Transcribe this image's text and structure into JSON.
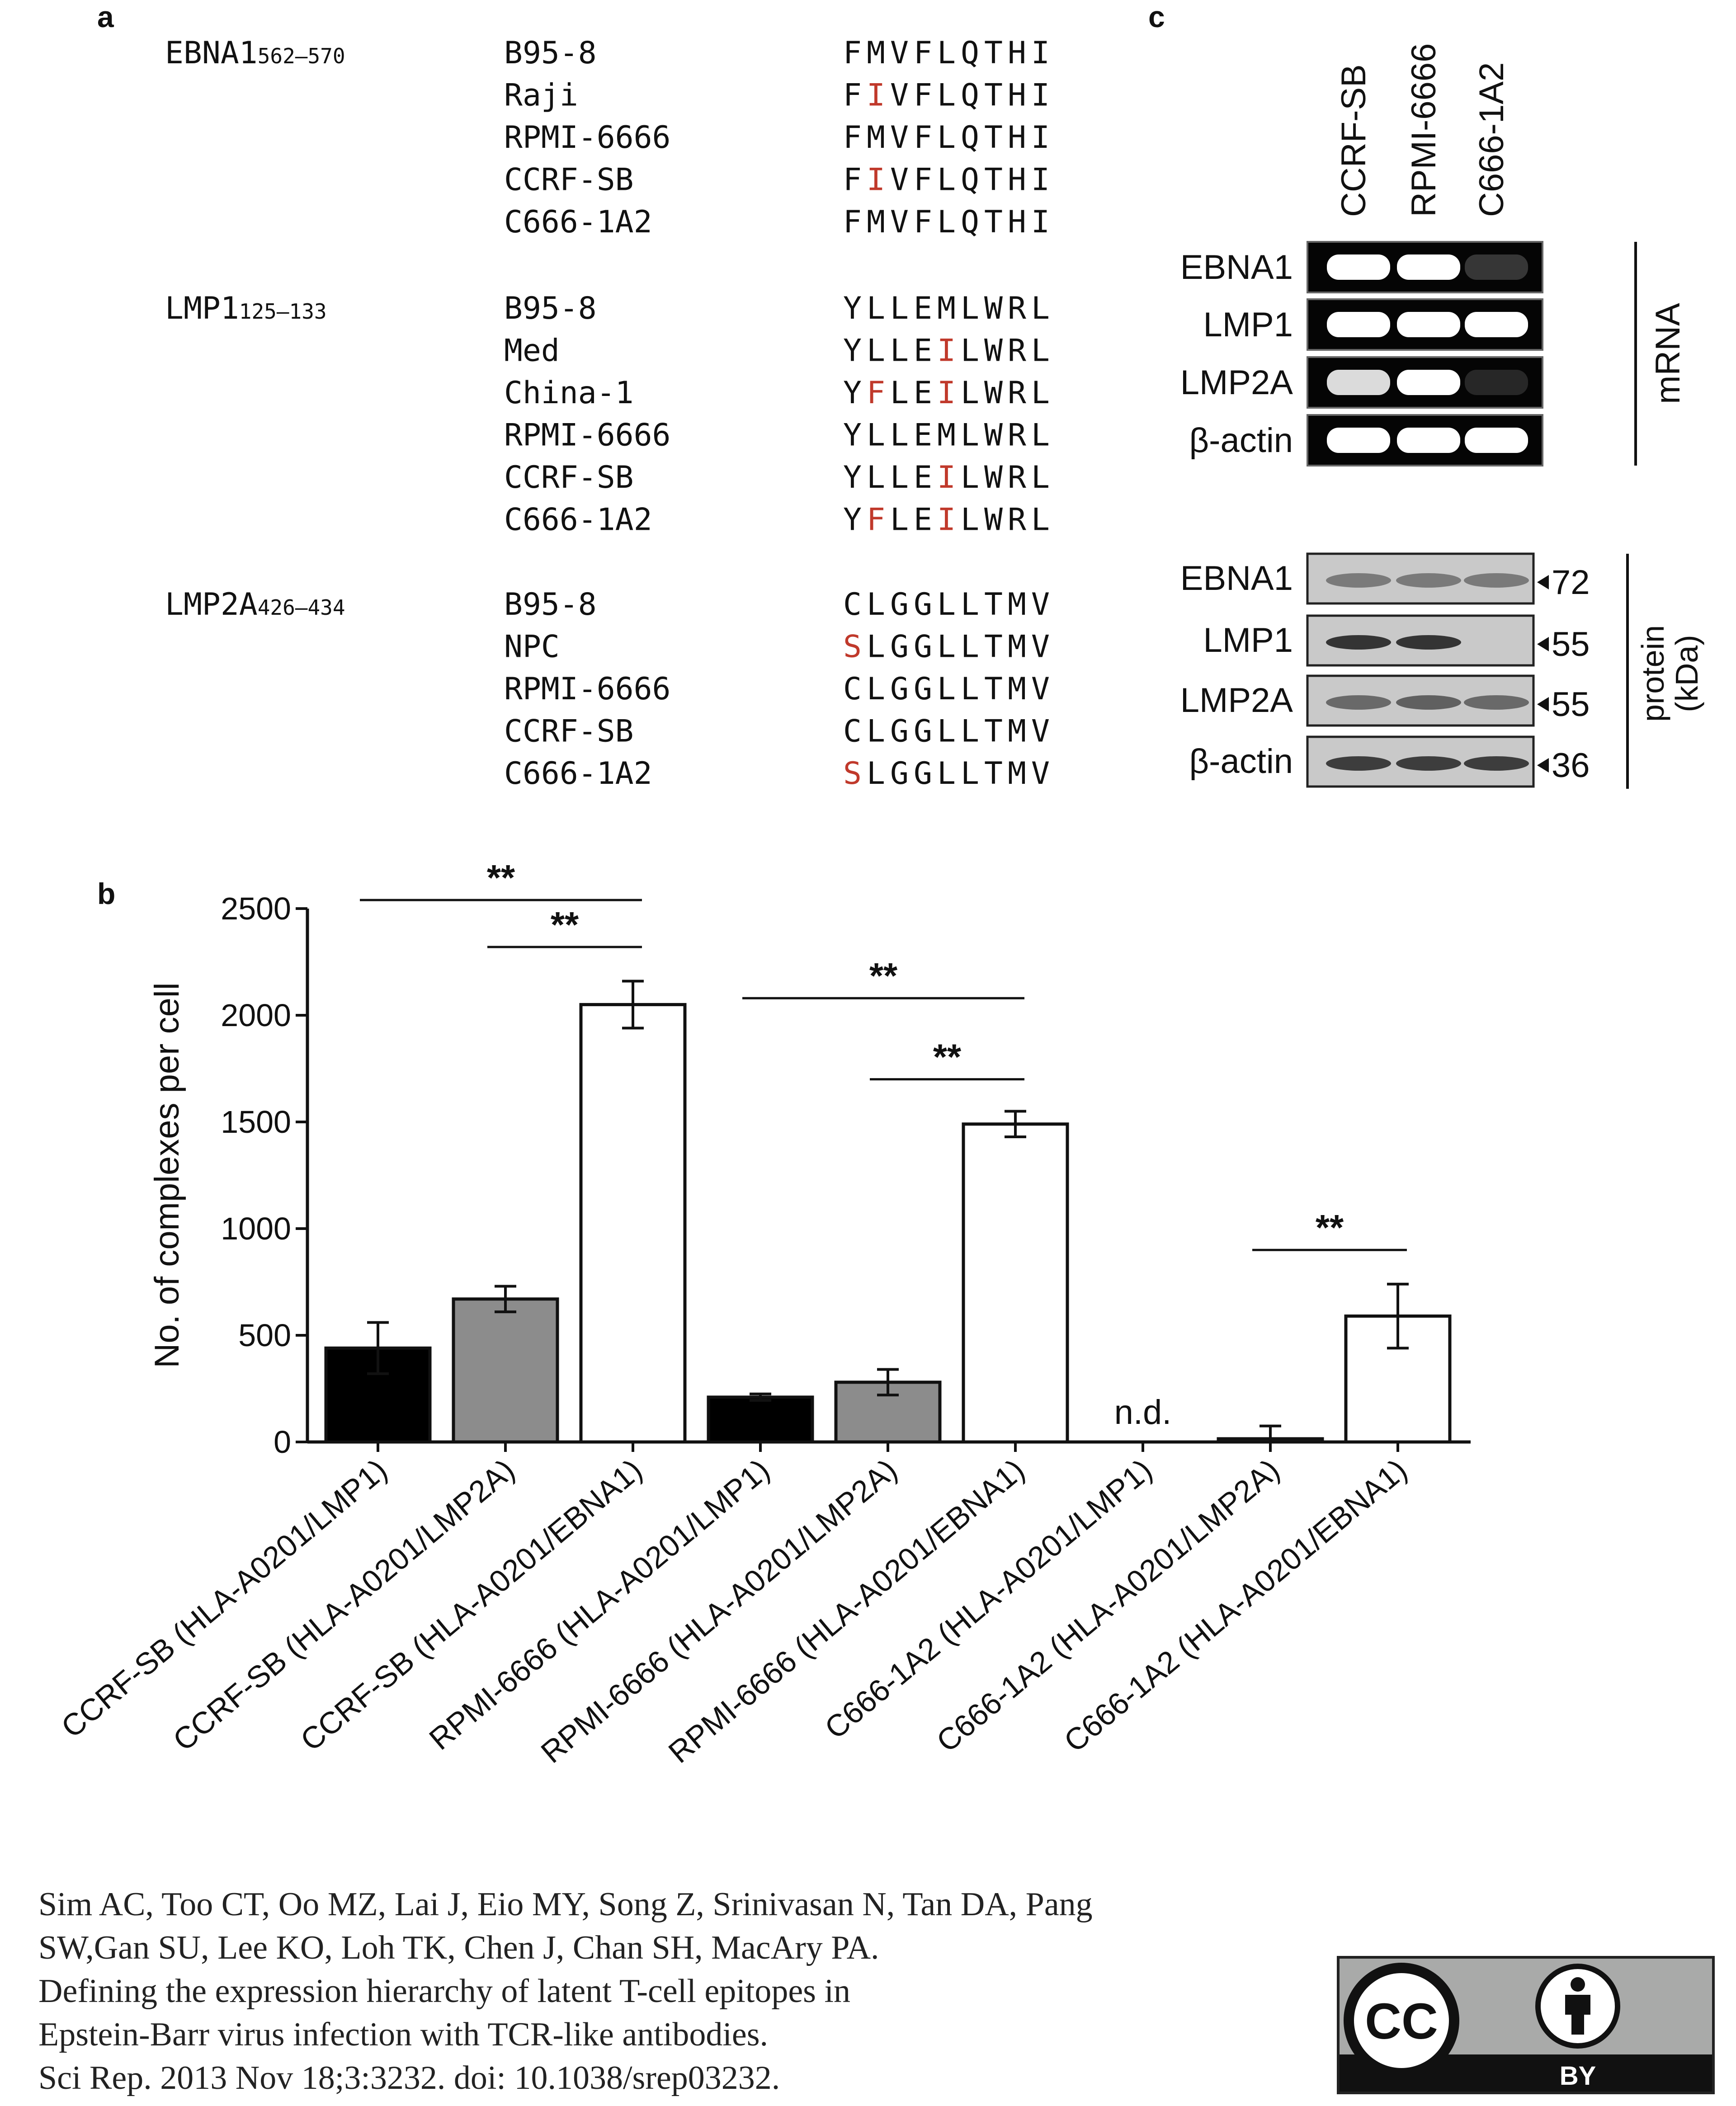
{
  "panels": {
    "a": {
      "label": "a",
      "groups": [
        {
          "name": "EBNA1",
          "range": "562–570",
          "rows": [
            {
              "strain": "B95-8",
              "seq": "FMVFLQTHI",
              "mut": []
            },
            {
              "strain": "Raji",
              "seq": "FIVFLQTHI",
              "mut": [
                1
              ]
            },
            {
              "strain": "RPMI-6666",
              "seq": "FMVFLQTHI",
              "mut": []
            },
            {
              "strain": "CCRF-SB",
              "seq": "FIVFLQTHI",
              "mut": [
                1
              ]
            },
            {
              "strain": "C666-1A2",
              "seq": "FMVFLQTHI",
              "mut": []
            }
          ]
        },
        {
          "name": "LMP1",
          "range": "125–133",
          "rows": [
            {
              "strain": "B95-8",
              "seq": "YLLEMLWRL",
              "mut": []
            },
            {
              "strain": "Med",
              "seq": "YLLEILWRL",
              "mut": [
                4
              ]
            },
            {
              "strain": "China-1",
              "seq": "YFLEILWRL",
              "mut": [
                1,
                4
              ]
            },
            {
              "strain": "RPMI-6666",
              "seq": "YLLEMLWRL",
              "mut": []
            },
            {
              "strain": "CCRF-SB",
              "seq": "YLLEILWRL",
              "mut": [
                4
              ]
            },
            {
              "strain": "C666-1A2",
              "seq": "YFLEILWRL",
              "mut": [
                1,
                4
              ]
            }
          ]
        },
        {
          "name": "LMP2A",
          "range": "426–434",
          "rows": [
            {
              "strain": "B95-8",
              "seq": "CLGGLLTMV",
              "mut": []
            },
            {
              "strain": "NPC",
              "seq": "SLGGLLTMV",
              "mut": [
                0
              ]
            },
            {
              "strain": "RPMI-6666",
              "seq": "CLGGLLTMV",
              "mut": []
            },
            {
              "strain": "CCRF-SB",
              "seq": "CLGGLLTMV",
              "mut": []
            },
            {
              "strain": "C666-1A2",
              "seq": "SLGGLLTMV",
              "mut": [
                0
              ]
            }
          ]
        }
      ],
      "mutation_color": "#c0392b"
    },
    "b": {
      "label": "b"
    },
    "c": {
      "label": "c",
      "lanes": [
        "CCRF-SB",
        "RPMI-6666",
        "C666-1A2"
      ],
      "mrna": {
        "title": "mRNA",
        "rows": [
          {
            "label": "EBNA1",
            "bands": [
              1.0,
              1.0,
              0.25
            ]
          },
          {
            "label": "LMP1",
            "bands": [
              1.0,
              1.0,
              1.0
            ]
          },
          {
            "label": "LMP2A",
            "bands": [
              0.9,
              1.0,
              0.15
            ]
          },
          {
            "label": "β-actin",
            "bands": [
              1.0,
              1.0,
              1.0
            ]
          }
        ]
      },
      "protein": {
        "title": "protein",
        "subtitle": "(kDa)",
        "rows": [
          {
            "label": "EBNA1",
            "kda": "72",
            "bands": [
              0.45,
              0.45,
              0.45
            ]
          },
          {
            "label": "LMP1",
            "kda": "55",
            "bands": [
              0.85,
              0.85,
              0.0
            ]
          },
          {
            "label": "LMP2A",
            "kda": "55",
            "bands": [
              0.55,
              0.6,
              0.55
            ]
          },
          {
            "label": "β-actin",
            "kda": "36",
            "bands": [
              0.8,
              0.8,
              0.8
            ]
          }
        ]
      }
    }
  },
  "chart_data": {
    "type": "bar",
    "title": "",
    "xlabel": "",
    "ylabel": "No. of complexes per cell",
    "ylim": [
      0,
      2500
    ],
    "yticks": [
      0,
      500,
      1000,
      1500,
      2000,
      2500
    ],
    "grid": false,
    "categories": [
      "CCRF-SB (HLA-A0201/LMP1)",
      "CCRF-SB (HLA-A0201/LMP2A)",
      "CCRF-SB (HLA-A0201/EBNA1)",
      "RPMI-6666 (HLA-A0201/LMP1)",
      "RPMI-6666 (HLA-A0201/LMP2A)",
      "RPMI-6666 (HLA-A0201/EBNA1)",
      "C666-1A2 (HLA-A0201/LMP1)",
      "C666-1A2 (HLA-A0201/LMP2A)",
      "C666-1A2 (HLA-A0201/EBNA1)"
    ],
    "values": [
      440,
      670,
      2050,
      210,
      280,
      1490,
      0,
      15,
      590
    ],
    "errors": [
      120,
      60,
      110,
      15,
      60,
      60,
      0,
      60,
      150
    ],
    "colors": [
      "#000000",
      "#8c8c8c",
      "#ffffff",
      "#000000",
      "#8c8c8c",
      "#ffffff",
      "#000000",
      "#8c8c8c",
      "#ffffff"
    ],
    "annotations": [
      {
        "text": "n.d.",
        "category_index": 6
      }
    ],
    "significance": [
      {
        "text": "**",
        "from": 0,
        "to": 2,
        "level": 2540
      },
      {
        "text": "**",
        "from": 1,
        "to": 2,
        "level": 2320
      },
      {
        "text": "**",
        "from": 3,
        "to": 5,
        "level": 2080
      },
      {
        "text": "**",
        "from": 4,
        "to": 5,
        "level": 1700
      },
      {
        "text": "**",
        "from": 7,
        "to": 8,
        "level": 900
      }
    ]
  },
  "citation": {
    "lines": [
      "Sim AC, Too CT, Oo MZ, Lai J, Eio MY, Song Z, Srinivasan N, Tan DA, Pang",
      "SW,Gan SU, Lee KO, Loh TK, Chen J, Chan SH, MacAry PA.",
      "Defining the expression hierarchy of latent T-cell epitopes in",
      "Epstein-Barr virus infection with TCR-like antibodies.",
      "Sci Rep. 2013 Nov 18;3:3232. doi: 10.1038/srep03232."
    ]
  },
  "license": {
    "cc_text": "CC",
    "by_text": "BY"
  }
}
